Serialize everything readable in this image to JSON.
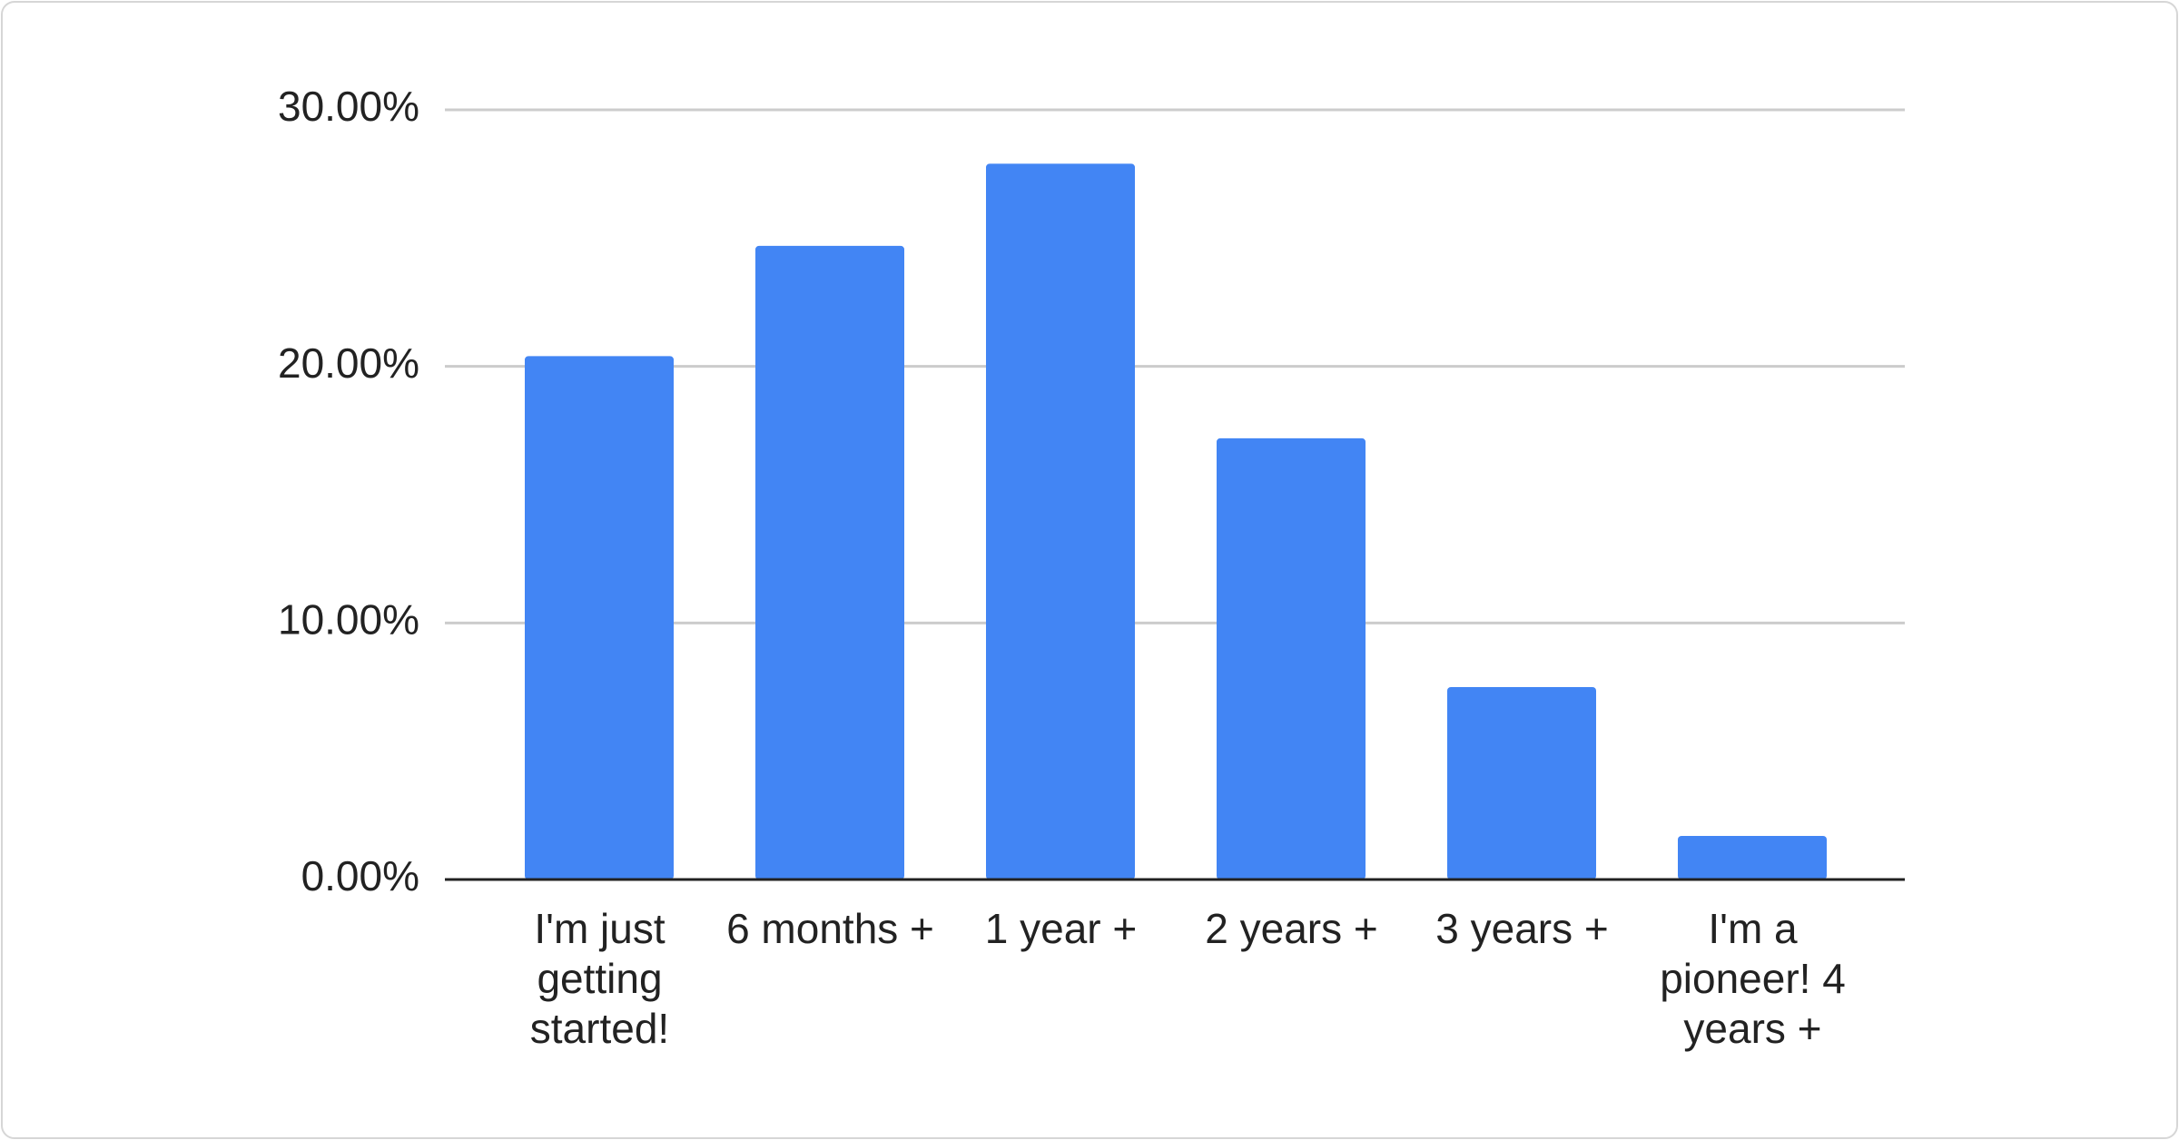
{
  "chart_data": {
    "type": "bar",
    "categories": [
      "I'm just getting started!",
      "6 months +",
      "1 year +",
      "2 years +",
      "3 years +",
      "I'm a pioneer! 4 years +"
    ],
    "values": [
      20.4,
      24.7,
      27.9,
      17.2,
      7.5,
      1.7
    ],
    "color": "#4285f4",
    "ylim": [
      0,
      30
    ],
    "yticks": [
      {
        "value": 0,
        "label": "0.00%"
      },
      {
        "value": 10,
        "label": "10.00%"
      },
      {
        "value": 20,
        "label": "20.00%"
      },
      {
        "value": 30,
        "label": "30.00%"
      }
    ],
    "grid": true
  }
}
